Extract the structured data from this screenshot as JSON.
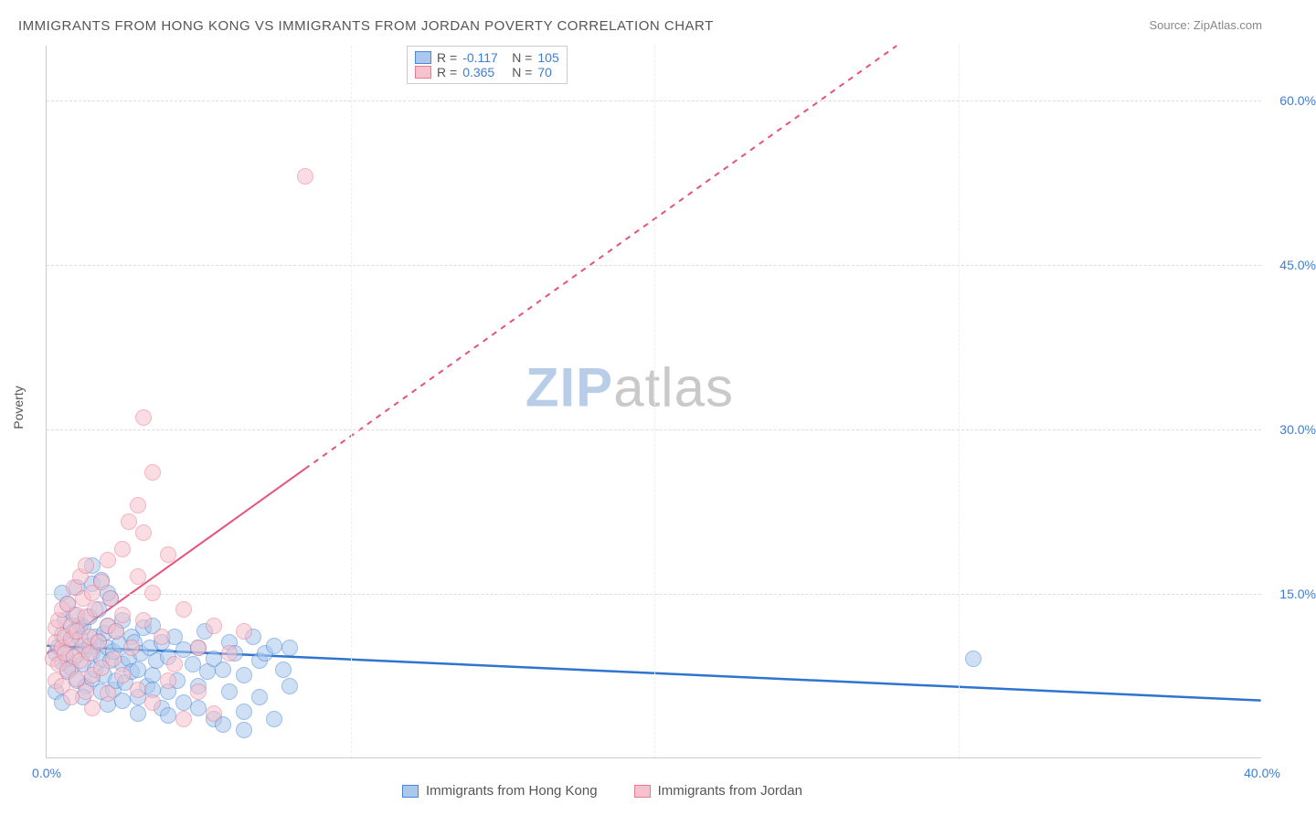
{
  "title": "IMMIGRANTS FROM HONG KONG VS IMMIGRANTS FROM JORDAN POVERTY CORRELATION CHART",
  "source_label": "Source: ",
  "source_value": "ZipAtlas.com",
  "ylabel": "Poverty",
  "watermark_a": "ZIP",
  "watermark_b": "atlas",
  "watermark_color_a": "#b8cde8",
  "watermark_color_b": "#c9c9c9",
  "chart": {
    "type": "scatter",
    "background_color": "#ffffff",
    "grid_color": "#dddddd",
    "axis_color": "#cccccc",
    "xlim": [
      0,
      40
    ],
    "ylim": [
      0,
      65
    ],
    "xtick_step": 10,
    "yticks": [
      15,
      30,
      45,
      60
    ],
    "xtick_labels": [
      "0.0%",
      "40.0%"
    ],
    "ytick_labels": [
      "15.0%",
      "30.0%",
      "45.0%",
      "60.0%"
    ],
    "tick_label_color": "#3b7dd8",
    "tick_label_fontsize": 14,
    "marker_radius": 9,
    "marker_opacity": 0.55,
    "marker_stroke_width": 1.2,
    "series": [
      {
        "name": "Immigrants from Hong Kong",
        "fill": "#a9c8ec",
        "stroke": "#4a87d8",
        "r_value": "-0.117",
        "n_value": "105",
        "trend": {
          "x1": 0,
          "y1": 10.2,
          "x2": 40,
          "y2": 5.2,
          "color": "#2f74d0",
          "width": 2.5,
          "dash": "none"
        },
        "points": [
          [
            0.3,
            9.5
          ],
          [
            0.4,
            10.1
          ],
          [
            0.5,
            8.7
          ],
          [
            0.5,
            11.2
          ],
          [
            0.6,
            12.5
          ],
          [
            0.7,
            7.8
          ],
          [
            0.7,
            9.0
          ],
          [
            0.8,
            10.5
          ],
          [
            0.8,
            8.2
          ],
          [
            0.9,
            13.0
          ],
          [
            0.9,
            11.5
          ],
          [
            1.0,
            9.3
          ],
          [
            1.0,
            7.0
          ],
          [
            1.1,
            12.1
          ],
          [
            1.1,
            10.8
          ],
          [
            1.2,
            8.5
          ],
          [
            1.2,
            11.9
          ],
          [
            1.3,
            6.5
          ],
          [
            1.3,
            9.8
          ],
          [
            1.4,
            10.2
          ],
          [
            1.4,
            12.8
          ],
          [
            1.5,
            7.2
          ],
          [
            1.5,
            9.5
          ],
          [
            1.6,
            11.0
          ],
          [
            1.6,
            8.0
          ],
          [
            1.7,
            10.6
          ],
          [
            1.7,
            13.5
          ],
          [
            1.8,
            6.0
          ],
          [
            1.8,
            9.0
          ],
          [
            1.9,
            11.3
          ],
          [
            1.9,
            7.5
          ],
          [
            2.0,
            10.0
          ],
          [
            2.0,
            12.0
          ],
          [
            2.1,
            8.8
          ],
          [
            2.1,
            14.5
          ],
          [
            2.2,
            6.2
          ],
          [
            2.2,
            9.7
          ],
          [
            2.3,
            11.5
          ],
          [
            2.3,
            7.0
          ],
          [
            2.4,
            10.3
          ],
          [
            2.5,
            8.5
          ],
          [
            2.5,
            12.5
          ],
          [
            2.6,
            6.8
          ],
          [
            2.7,
            9.0
          ],
          [
            2.8,
            11.0
          ],
          [
            2.8,
            7.8
          ],
          [
            2.9,
            10.5
          ],
          [
            3.0,
            8.0
          ],
          [
            3.0,
            5.5
          ],
          [
            3.1,
            9.5
          ],
          [
            3.2,
            11.8
          ],
          [
            3.3,
            6.5
          ],
          [
            3.4,
            10.0
          ],
          [
            3.5,
            7.5
          ],
          [
            3.5,
            12.0
          ],
          [
            3.6,
            8.8
          ],
          [
            3.8,
            4.5
          ],
          [
            3.8,
            10.5
          ],
          [
            4.0,
            6.0
          ],
          [
            4.0,
            9.2
          ],
          [
            4.2,
            11.0
          ],
          [
            4.3,
            7.0
          ],
          [
            4.5,
            9.8
          ],
          [
            4.5,
            5.0
          ],
          [
            4.8,
            8.5
          ],
          [
            5.0,
            10.0
          ],
          [
            5.0,
            6.5
          ],
          [
            5.2,
            11.5
          ],
          [
            5.3,
            7.8
          ],
          [
            5.5,
            9.0
          ],
          [
            5.5,
            3.5
          ],
          [
            5.8,
            8.0
          ],
          [
            6.0,
            10.5
          ],
          [
            6.0,
            6.0
          ],
          [
            6.2,
            9.5
          ],
          [
            6.5,
            7.5
          ],
          [
            6.5,
            2.5
          ],
          [
            6.8,
            11.0
          ],
          [
            7.0,
            8.8
          ],
          [
            7.2,
            9.5
          ],
          [
            7.5,
            10.2
          ],
          [
            7.8,
            8.0
          ],
          [
            8.0,
            10.0
          ],
          [
            8.0,
            6.5
          ],
          [
            0.5,
            15.0
          ],
          [
            0.7,
            14.0
          ],
          [
            1.0,
            15.5
          ],
          [
            1.5,
            15.8
          ],
          [
            1.8,
            16.2
          ],
          [
            2.0,
            15.0
          ],
          [
            0.3,
            6.0
          ],
          [
            0.5,
            5.0
          ],
          [
            1.2,
            5.5
          ],
          [
            2.0,
            4.8
          ],
          [
            2.5,
            5.2
          ],
          [
            3.0,
            4.0
          ],
          [
            3.5,
            6.2
          ],
          [
            4.0,
            3.8
          ],
          [
            5.0,
            4.5
          ],
          [
            5.8,
            3.0
          ],
          [
            6.5,
            4.2
          ],
          [
            7.0,
            5.5
          ],
          [
            7.5,
            3.5
          ],
          [
            30.5,
            9.0
          ],
          [
            1.5,
            17.5
          ]
        ]
      },
      {
        "name": "Immigrants from Jordan",
        "fill": "#f5c2cd",
        "stroke": "#e87a94",
        "r_value": "0.365",
        "n_value": "70",
        "trend": {
          "x1": 0,
          "y1": 9.5,
          "x2": 28,
          "y2": 65,
          "color": "#e8517a",
          "width": 2,
          "dash": "solid_then_dash",
          "solid_until_x": 8.5
        },
        "points": [
          [
            0.2,
            9.0
          ],
          [
            0.3,
            10.5
          ],
          [
            0.3,
            11.8
          ],
          [
            0.4,
            8.5
          ],
          [
            0.4,
            12.5
          ],
          [
            0.5,
            10.0
          ],
          [
            0.5,
            13.5
          ],
          [
            0.6,
            9.5
          ],
          [
            0.6,
            11.0
          ],
          [
            0.7,
            14.0
          ],
          [
            0.7,
            8.0
          ],
          [
            0.8,
            10.8
          ],
          [
            0.8,
            12.0
          ],
          [
            0.9,
            15.5
          ],
          [
            0.9,
            9.2
          ],
          [
            1.0,
            11.5
          ],
          [
            1.0,
            13.0
          ],
          [
            1.1,
            16.5
          ],
          [
            1.1,
            8.8
          ],
          [
            1.2,
            10.2
          ],
          [
            1.2,
            14.5
          ],
          [
            1.3,
            12.8
          ],
          [
            1.3,
            17.5
          ],
          [
            1.4,
            9.5
          ],
          [
            1.4,
            11.0
          ],
          [
            1.5,
            15.0
          ],
          [
            1.5,
            7.5
          ],
          [
            1.6,
            13.5
          ],
          [
            1.7,
            10.5
          ],
          [
            1.8,
            16.0
          ],
          [
            1.8,
            8.2
          ],
          [
            2.0,
            12.0
          ],
          [
            2.0,
            18.0
          ],
          [
            2.1,
            14.5
          ],
          [
            2.2,
            9.0
          ],
          [
            2.3,
            11.5
          ],
          [
            2.5,
            19.0
          ],
          [
            2.5,
            13.0
          ],
          [
            2.7,
            21.5
          ],
          [
            2.8,
            10.0
          ],
          [
            3.0,
            16.5
          ],
          [
            3.0,
            23.0
          ],
          [
            3.2,
            12.5
          ],
          [
            3.2,
            20.5
          ],
          [
            3.5,
            15.0
          ],
          [
            3.5,
            26.0
          ],
          [
            3.8,
            11.0
          ],
          [
            4.0,
            18.5
          ],
          [
            4.2,
            8.5
          ],
          [
            4.5,
            13.5
          ],
          [
            5.0,
            10.0
          ],
          [
            5.5,
            12.0
          ],
          [
            6.0,
            9.5
          ],
          [
            6.5,
            11.5
          ],
          [
            0.3,
            7.0
          ],
          [
            0.5,
            6.5
          ],
          [
            0.8,
            5.5
          ],
          [
            1.0,
            7.2
          ],
          [
            1.3,
            6.0
          ],
          [
            1.5,
            4.5
          ],
          [
            2.0,
            5.8
          ],
          [
            2.5,
            7.5
          ],
          [
            3.0,
            6.2
          ],
          [
            3.5,
            5.0
          ],
          [
            4.0,
            7.0
          ],
          [
            4.5,
            3.5
          ],
          [
            5.0,
            6.0
          ],
          [
            5.5,
            4.0
          ],
          [
            3.2,
            31.0
          ],
          [
            8.5,
            53.0
          ]
        ]
      }
    ]
  },
  "stats_legend": {
    "r_label": "R =",
    "n_label": "N =",
    "value_color": "#3b7dd8",
    "label_color": "#555555"
  },
  "bottom_legend": {
    "items": [
      "Immigrants from Hong Kong",
      "Immigrants from Jordan"
    ]
  }
}
